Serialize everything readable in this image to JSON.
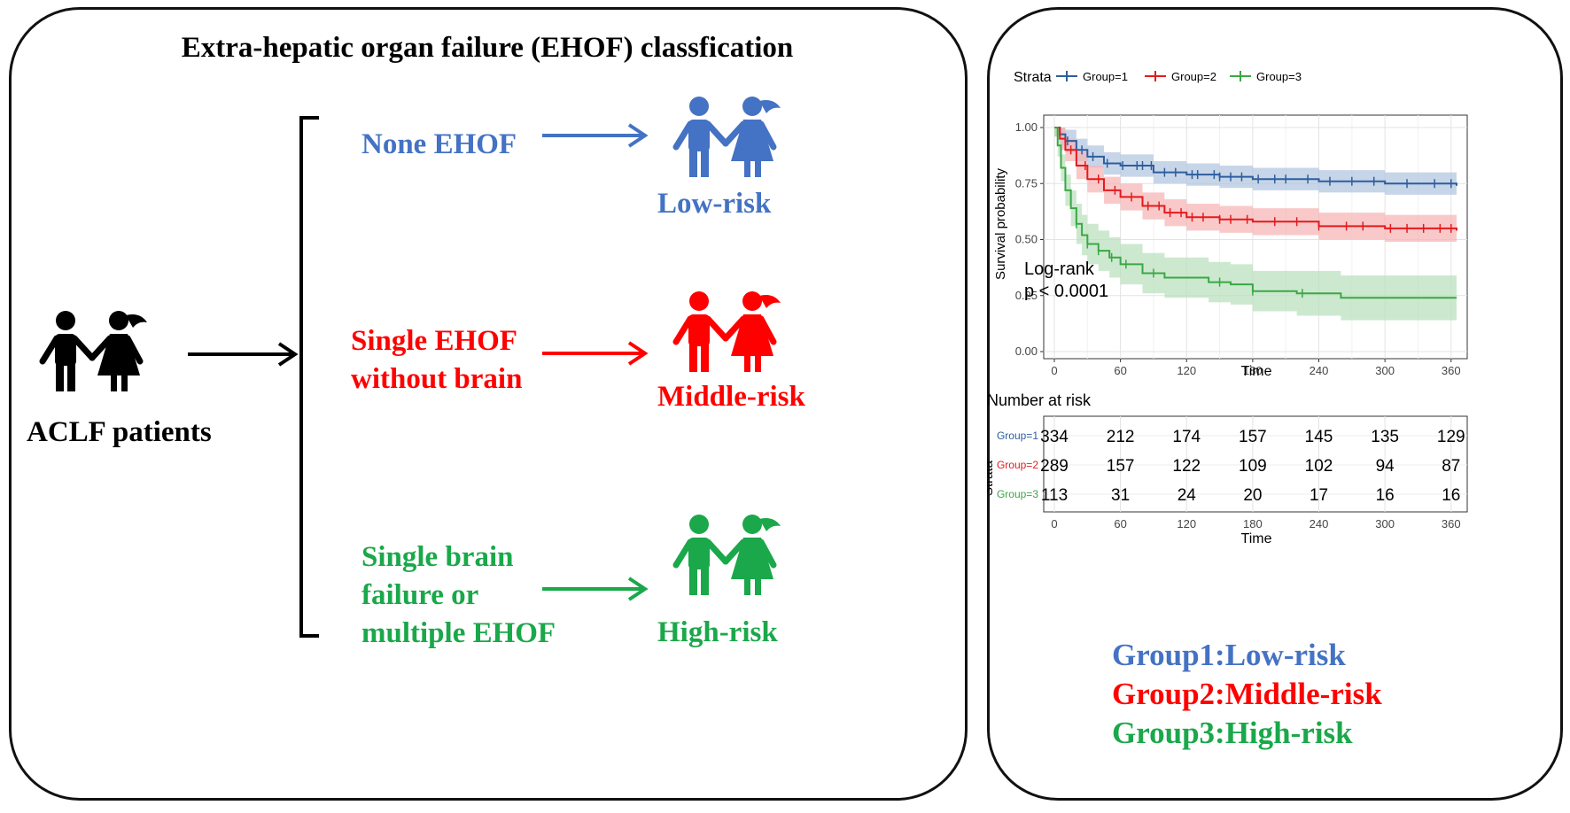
{
  "left_panel": {
    "title": "Extra-hepatic organ failure (EHOF) classfication",
    "patients_label": "ACLF patients",
    "rows": [
      {
        "criterion_lines": [
          "None EHOF"
        ],
        "risk": "Low-risk",
        "color": "#4472C4"
      },
      {
        "criterion_lines": [
          "Single EHOF",
          "without brain"
        ],
        "risk": "Middle-risk",
        "color": "#FF0000"
      },
      {
        "criterion_lines": [
          "Single brain",
          "failure or",
          "multiple EHOF"
        ],
        "risk": "High-risk",
        "color": "#1AA84A"
      }
    ],
    "icons": {
      "patients": "children-pair-icon",
      "group": "children-pair-icon",
      "arrow": "arrow-right-icon",
      "bracket": "bracket-icon"
    }
  },
  "right_panel": {
    "legend_title": "Strata",
    "chart_data": {
      "type": "line",
      "subtype": "kaplan-meier",
      "xlabel": "Time",
      "ylabel": "Survival probability",
      "xlim": [
        0,
        365
      ],
      "ylim": [
        0,
        1
      ],
      "xticks": [
        0,
        60,
        120,
        180,
        240,
        300,
        360
      ],
      "yticks": [
        "0.00",
        "0.25",
        "0.50",
        "0.75",
        "1.00"
      ],
      "grid": true,
      "legend_position": "top",
      "annotation": [
        "Log-rank",
        "p < 0.0001"
      ],
      "series": [
        {
          "name": "Group=1",
          "color": "#2E5E9E",
          "fill": "#AFC3DF",
          "points": [
            [
              0,
              1.0
            ],
            [
              5,
              0.97
            ],
            [
              10,
              0.94
            ],
            [
              20,
              0.9
            ],
            [
              30,
              0.87
            ],
            [
              45,
              0.84
            ],
            [
              60,
              0.83
            ],
            [
              90,
              0.8
            ],
            [
              120,
              0.79
            ],
            [
              150,
              0.78
            ],
            [
              180,
              0.77
            ],
            [
              240,
              0.76
            ],
            [
              300,
              0.75
            ],
            [
              365,
              0.74
            ]
          ],
          "band": [
            0.04,
            0.05,
            0.05,
            0.05,
            0.05,
            0.05,
            0.05,
            0.05,
            0.05,
            0.05,
            0.05,
            0.05,
            0.05,
            0.05
          ],
          "censor_x": [
            12,
            25,
            35,
            48,
            62,
            75,
            80,
            88,
            100,
            110,
            125,
            130,
            145,
            150,
            160,
            170,
            185,
            200,
            210,
            230,
            250,
            270,
            290,
            320,
            345,
            360
          ]
        },
        {
          "name": "Group=2",
          "color": "#E41A1C",
          "fill": "#F6B2B3",
          "points": [
            [
              0,
              1.0
            ],
            [
              5,
              0.95
            ],
            [
              10,
              0.9
            ],
            [
              20,
              0.83
            ],
            [
              30,
              0.77
            ],
            [
              45,
              0.72
            ],
            [
              60,
              0.69
            ],
            [
              80,
              0.65
            ],
            [
              100,
              0.62
            ],
            [
              120,
              0.6
            ],
            [
              150,
              0.59
            ],
            [
              180,
              0.58
            ],
            [
              240,
              0.56
            ],
            [
              300,
              0.55
            ],
            [
              365,
              0.54
            ]
          ],
          "band": [
            0.04,
            0.05,
            0.05,
            0.06,
            0.06,
            0.06,
            0.06,
            0.06,
            0.06,
            0.06,
            0.06,
            0.06,
            0.06,
            0.06,
            0.06
          ],
          "censor_x": [
            15,
            28,
            40,
            55,
            70,
            85,
            95,
            105,
            115,
            125,
            135,
            150,
            160,
            175,
            200,
            220,
            240,
            265,
            280,
            305,
            320,
            335,
            350,
            360
          ]
        },
        {
          "name": "Group=3",
          "color": "#3AA845",
          "fill": "#B7E0BA",
          "points": [
            [
              0,
              1.0
            ],
            [
              3,
              0.92
            ],
            [
              6,
              0.82
            ],
            [
              10,
              0.72
            ],
            [
              15,
              0.64
            ],
            [
              20,
              0.57
            ],
            [
              25,
              0.52
            ],
            [
              30,
              0.48
            ],
            [
              40,
              0.45
            ],
            [
              50,
              0.42
            ],
            [
              60,
              0.39
            ],
            [
              80,
              0.35
            ],
            [
              100,
              0.33
            ],
            [
              140,
              0.31
            ],
            [
              160,
              0.3
            ],
            [
              180,
              0.27
            ],
            [
              220,
              0.26
            ],
            [
              260,
              0.24
            ],
            [
              365,
              0.24
            ]
          ],
          "band": [
            0.04,
            0.05,
            0.06,
            0.07,
            0.08,
            0.09,
            0.09,
            0.09,
            0.09,
            0.09,
            0.09,
            0.09,
            0.09,
            0.09,
            0.09,
            0.09,
            0.1,
            0.1,
            0.1
          ],
          "censor_x": [
            20,
            30,
            40,
            52,
            65,
            90,
            150,
            180,
            225
          ]
        }
      ]
    },
    "risk_table": {
      "title": "Number at risk",
      "ylabel": "Strata",
      "xlabel": "Time",
      "xticks": [
        "0",
        "60",
        "120",
        "180",
        "240",
        "300",
        "360"
      ],
      "rows": [
        {
          "label": "Group=1",
          "color": "#2E5E9E",
          "values": [
            "334",
            "212",
            "174",
            "157",
            "145",
            "135",
            "129"
          ]
        },
        {
          "label": "Group=2",
          "color": "#E41A1C",
          "values": [
            "289",
            "157",
            "122",
            "109",
            "102",
            "94",
            "87"
          ]
        },
        {
          "label": "Group=3",
          "color": "#3AA845",
          "values": [
            "113",
            "31",
            "24",
            "20",
            "17",
            "16",
            "16"
          ]
        }
      ]
    },
    "group_labels": [
      {
        "text": "Group1:Low-risk",
        "color": "#4472C4"
      },
      {
        "text": "Group2:Middle-risk",
        "color": "#FF0000"
      },
      {
        "text": "Group3:High-risk",
        "color": "#1AA84A"
      }
    ]
  }
}
